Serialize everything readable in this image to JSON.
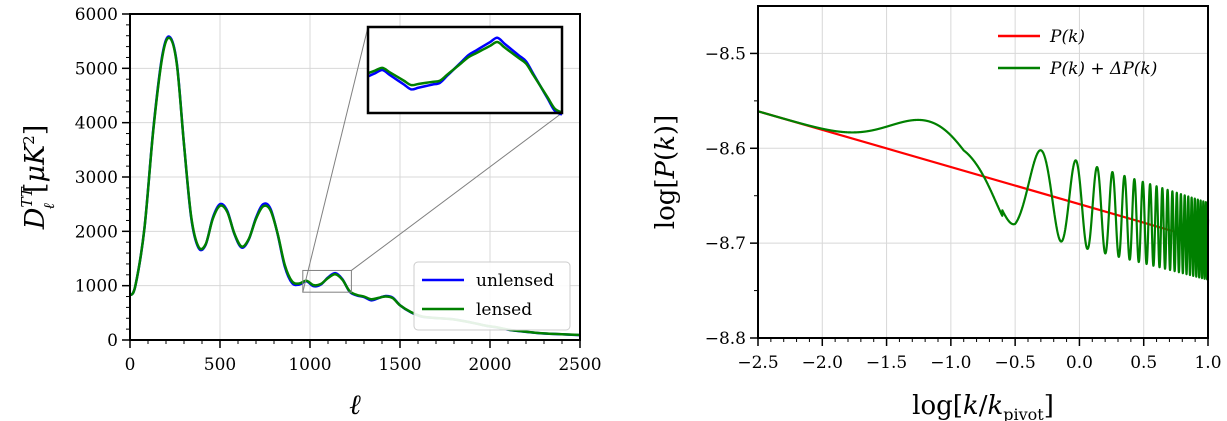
{
  "chart_data": [
    {
      "type": "line",
      "xlabel": "ℓ",
      "ylabel": "D_ℓ^{TT}[μK²]",
      "xlim": [
        0,
        2500
      ],
      "ylim": [
        0,
        6000
      ],
      "xticks": [
        "0",
        "500",
        "1000",
        "1500",
        "2000",
        "2500"
      ],
      "yticks": [
        "0",
        "1000",
        "2000",
        "3000",
        "4000",
        "5000",
        "6000"
      ],
      "grid": true,
      "legend_position": "lower-right",
      "series": [
        {
          "name": "unlensed",
          "color": "#0000ff",
          "x": [
            2,
            30,
            80,
            130,
            180,
            220,
            260,
            300,
            340,
            380,
            420,
            460,
            500,
            540,
            580,
            620,
            660,
            700,
            740,
            780,
            820,
            860,
            900,
            940,
            980,
            1020,
            1060,
            1100,
            1140,
            1180,
            1220,
            1260,
            1300,
            1340,
            1380,
            1420,
            1460,
            1500,
            1560,
            1620,
            1680,
            1740,
            1800,
            1860,
            1920,
            1980,
            2040,
            2100,
            2200,
            2300,
            2400,
            2500
          ],
          "y": [
            820,
            1000,
            2050,
            3900,
            5250,
            5580,
            5100,
            3600,
            2250,
            1700,
            1750,
            2250,
            2500,
            2380,
            1950,
            1700,
            1850,
            2250,
            2500,
            2420,
            1950,
            1350,
            1050,
            1020,
            1080,
            990,
            1020,
            1150,
            1230,
            1120,
            890,
            820,
            790,
            730,
            770,
            810,
            780,
            640,
            510,
            430,
            410,
            395,
            380,
            345,
            305,
            260,
            230,
            190,
            150,
            120,
            105,
            90
          ]
        },
        {
          "name": "lensed",
          "color": "#008000",
          "x": [
            2,
            30,
            80,
            130,
            180,
            220,
            260,
            300,
            340,
            380,
            420,
            460,
            500,
            540,
            580,
            620,
            660,
            700,
            740,
            780,
            820,
            860,
            900,
            940,
            980,
            1020,
            1060,
            1100,
            1140,
            1180,
            1220,
            1260,
            1300,
            1340,
            1380,
            1420,
            1460,
            1500,
            1560,
            1620,
            1680,
            1740,
            1800,
            1860,
            1920,
            1980,
            2040,
            2100,
            2200,
            2300,
            2400,
            2500
          ],
          "y": [
            820,
            1000,
            2050,
            3880,
            5220,
            5560,
            5080,
            3600,
            2270,
            1720,
            1760,
            2230,
            2470,
            2360,
            1960,
            1720,
            1860,
            2230,
            2460,
            2390,
            1960,
            1380,
            1080,
            1040,
            1090,
            1010,
            1030,
            1140,
            1210,
            1110,
            900,
            830,
            800,
            750,
            775,
            800,
            770,
            640,
            515,
            435,
            410,
            395,
            378,
            345,
            305,
            262,
            232,
            192,
            152,
            122,
            106,
            92
          ]
        }
      ]
    },
    {
      "type": "line",
      "xlabel": "log[k/k_pivot]",
      "ylabel": "log[P(k)]",
      "xlim": [
        -2.5,
        1.0
      ],
      "ylim": [
        -8.8,
        -8.45
      ],
      "xticks": [
        "−2.5",
        "−2.0",
        "−1.5",
        "−1.0",
        "−0.5",
        "0.0",
        "0.5",
        "1.0"
      ],
      "yticks": [
        "−8.8",
        "−8.7",
        "−8.6",
        "−8.5"
      ],
      "grid": true,
      "legend_position": "top-right",
      "series": [
        {
          "name": "P(k)",
          "color": "#ff0000",
          "x": [
            -2.5,
            1.0
          ],
          "y": [
            -8.561,
            -8.698
          ]
        },
        {
          "name": "P(k) + ΔP(k)",
          "color": "#008000",
          "x": [
            -2.5,
            -2.2,
            -1.9,
            -1.6,
            -1.3,
            -1.1,
            -1.0,
            -0.9,
            -0.8,
            -0.7,
            -0.6,
            -0.5,
            -0.4,
            -0.3,
            -0.25,
            -0.2,
            -0.15,
            -0.1,
            -0.05,
            0.0,
            0.1,
            0.2,
            0.3,
            0.4,
            0.5,
            0.6,
            0.7,
            0.8,
            0.9,
            1.0
          ],
          "y": [
            -8.561,
            -8.568,
            -8.575,
            -8.58,
            -8.58,
            -8.577,
            -8.575,
            -8.58,
            -8.6,
            -8.64,
            -8.665,
            -8.68,
            -8.66,
            -8.605,
            -8.6,
            -8.64,
            -8.695,
            -8.64,
            -8.62,
            -8.615,
            -8.62,
            -8.625,
            -8.63,
            -8.635,
            -8.64,
            -8.645,
            -8.65,
            -8.655,
            -8.66,
            -8.67
          ]
        }
      ]
    }
  ],
  "left_legend": {
    "unlensed": "unlensed",
    "lensed": "lensed"
  },
  "right_legend": {
    "pk": "P(k)",
    "pk_delta": "P(k) + ΔP(k)"
  }
}
